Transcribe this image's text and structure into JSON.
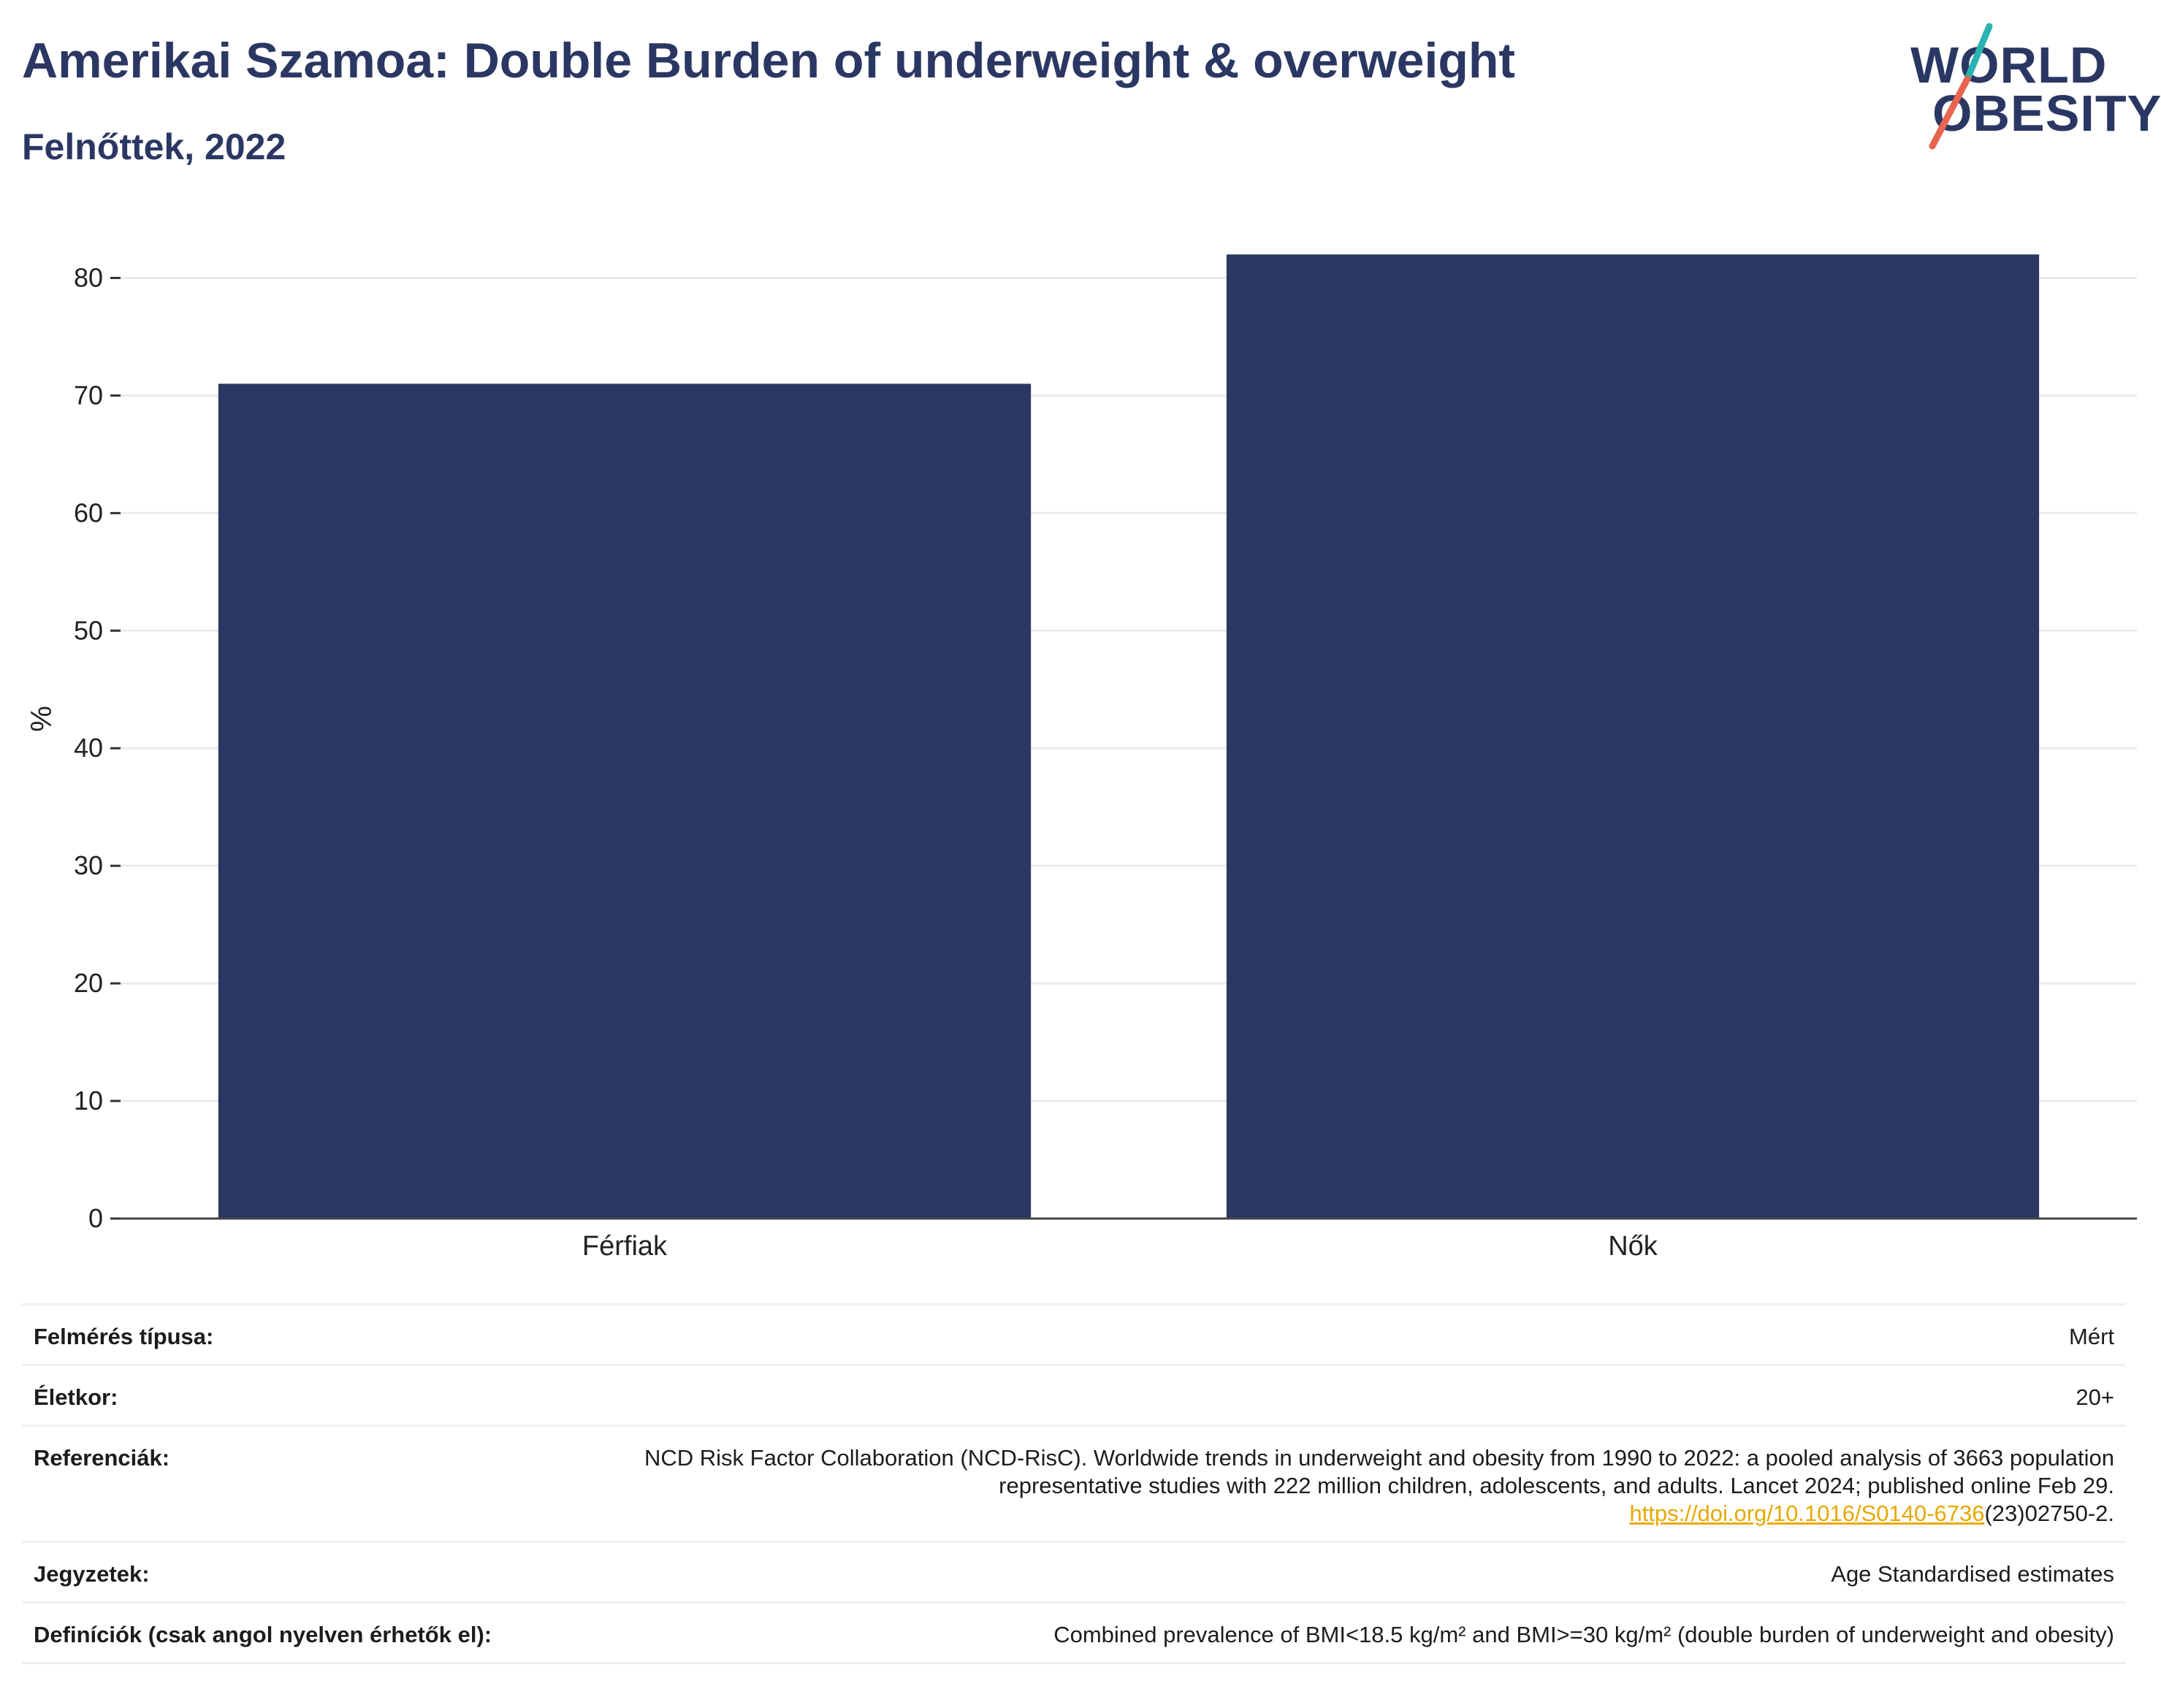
{
  "header": {
    "title": "Amerikai Szamoa: Double Burden of underweight & overweight",
    "subtitle": "Felnőttek, 2022"
  },
  "logo": {
    "line1": "WORLD",
    "line2": "OBESITY",
    "colors": {
      "text": "#2b3763",
      "slash_top": "#2bb3b1",
      "slash_bottom": "#e8654f"
    }
  },
  "chart_data": {
    "type": "bar",
    "categories": [
      "Férfiak",
      "Nők"
    ],
    "values": [
      71,
      82
    ],
    "ylabel": "%",
    "xlabel": "",
    "ylim": [
      0,
      85
    ],
    "yticks": [
      0,
      10,
      20,
      30,
      40,
      50,
      60,
      70,
      80
    ],
    "grid": true,
    "bar_color": "#2b3763"
  },
  "info": {
    "rows": [
      {
        "label": "Felmérés típusa:",
        "value": "Mért"
      },
      {
        "label": "Életkor:",
        "value": "20+"
      },
      {
        "label": "Referenciák:",
        "value": "NCD Risk Factor Collaboration (NCD-RisC). Worldwide trends in underweight and obesity from 1990 to 2022: a pooled analysis of 3663 population representative studies with 222 million children, adolescents, and adults. Lancet 2024; published online Feb 29.",
        "link": "https://doi.org/10.1016/S0140-6736",
        "link_suffix": "(23)02750-2."
      },
      {
        "label": "Jegyzetek:",
        "value": "Age Standardised estimates"
      },
      {
        "label": "Definíciók (csak angol nyelven érhetők el):",
        "value": "Combined prevalence of BMI<18.5 kg/m² and BMI>=30 kg/m² (double burden of underweight and obesity)"
      }
    ]
  }
}
